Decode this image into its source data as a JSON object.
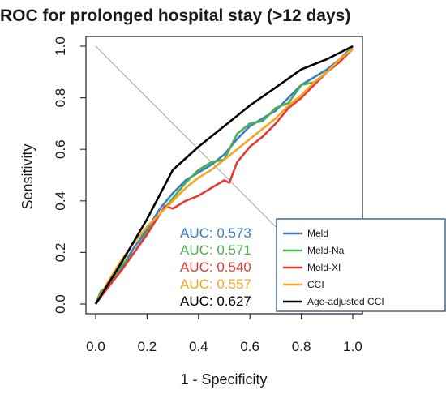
{
  "chart_data": {
    "type": "line",
    "title": "ROC for prolonged hospital stay (>12 days)",
    "xlabel": "1 - Specificity",
    "ylabel": "Sensitivity",
    "xlim": [
      0,
      1
    ],
    "ylim": [
      0,
      1
    ],
    "x_ticks": [
      "0.0",
      "0.2",
      "0.4",
      "0.6",
      "0.8",
      "1.0"
    ],
    "y_ticks": [
      "0.0",
      "0.2",
      "0.4",
      "0.6",
      "0.8",
      "1.0"
    ],
    "grid": false,
    "reference_line": true,
    "legend_position": "bottom-right",
    "series": [
      {
        "name": "Meld",
        "color": "#3b7ec4",
        "auc_label": "AUC: 0.573",
        "points": [
          [
            0,
            0
          ],
          [
            0.02,
            0.03
          ],
          [
            0.06,
            0.08
          ],
          [
            0.1,
            0.14
          ],
          [
            0.15,
            0.22
          ],
          [
            0.2,
            0.29
          ],
          [
            0.25,
            0.37
          ],
          [
            0.3,
            0.43
          ],
          [
            0.35,
            0.48
          ],
          [
            0.4,
            0.51
          ],
          [
            0.45,
            0.54
          ],
          [
            0.5,
            0.58
          ],
          [
            0.55,
            0.64
          ],
          [
            0.6,
            0.69
          ],
          [
            0.65,
            0.72
          ],
          [
            0.7,
            0.75
          ],
          [
            0.75,
            0.8
          ],
          [
            0.8,
            0.85
          ],
          [
            0.85,
            0.88
          ],
          [
            0.9,
            0.91
          ],
          [
            0.95,
            0.95
          ],
          [
            1,
            1
          ]
        ]
      },
      {
        "name": "Meld-Na",
        "color": "#4caf50",
        "auc_label": "AUC: 0.571",
        "points": [
          [
            0,
            0
          ],
          [
            0.02,
            0.05
          ],
          [
            0.05,
            0.07
          ],
          [
            0.1,
            0.15
          ],
          [
            0.15,
            0.2
          ],
          [
            0.2,
            0.28
          ],
          [
            0.25,
            0.35
          ],
          [
            0.3,
            0.41
          ],
          [
            0.35,
            0.47
          ],
          [
            0.4,
            0.52
          ],
          [
            0.45,
            0.55
          ],
          [
            0.5,
            0.56
          ],
          [
            0.55,
            0.66
          ],
          [
            0.6,
            0.7
          ],
          [
            0.65,
            0.71
          ],
          [
            0.7,
            0.76
          ],
          [
            0.75,
            0.78
          ],
          [
            0.8,
            0.85
          ],
          [
            0.85,
            0.86
          ],
          [
            0.9,
            0.9
          ],
          [
            0.95,
            0.94
          ],
          [
            1,
            1
          ]
        ]
      },
      {
        "name": "Meld-XI",
        "color": "#e53935",
        "auc_label": "AUC: 0.540",
        "points": [
          [
            0,
            0
          ],
          [
            0.03,
            0.04
          ],
          [
            0.06,
            0.08
          ],
          [
            0.1,
            0.13
          ],
          [
            0.15,
            0.2
          ],
          [
            0.2,
            0.27
          ],
          [
            0.25,
            0.35
          ],
          [
            0.27,
            0.38
          ],
          [
            0.3,
            0.37
          ],
          [
            0.35,
            0.4
          ],
          [
            0.4,
            0.42
          ],
          [
            0.45,
            0.45
          ],
          [
            0.5,
            0.48
          ],
          [
            0.52,
            0.47
          ],
          [
            0.55,
            0.55
          ],
          [
            0.6,
            0.61
          ],
          [
            0.65,
            0.65
          ],
          [
            0.7,
            0.7
          ],
          [
            0.75,
            0.76
          ],
          [
            0.8,
            0.8
          ],
          [
            0.85,
            0.85
          ],
          [
            0.9,
            0.9
          ],
          [
            0.95,
            0.94
          ],
          [
            1,
            0.99
          ]
        ]
      },
      {
        "name": "CCI",
        "color": "#f5a623",
        "auc_label": "AUC: 0.557",
        "points": [
          [
            0,
            0
          ],
          [
            0.05,
            0.09
          ],
          [
            0.1,
            0.17
          ],
          [
            0.15,
            0.24
          ],
          [
            0.2,
            0.3
          ],
          [
            0.25,
            0.35
          ],
          [
            0.3,
            0.4
          ],
          [
            0.35,
            0.45
          ],
          [
            0.4,
            0.49
          ],
          [
            0.45,
            0.52
          ],
          [
            0.5,
            0.56
          ],
          [
            0.55,
            0.6
          ],
          [
            0.6,
            0.64
          ],
          [
            0.65,
            0.68
          ],
          [
            0.7,
            0.72
          ],
          [
            0.75,
            0.77
          ],
          [
            0.8,
            0.81
          ],
          [
            0.85,
            0.86
          ],
          [
            0.9,
            0.9
          ],
          [
            0.95,
            0.95
          ],
          [
            1,
            0.99
          ]
        ]
      },
      {
        "name": "Age-adjusted CCI",
        "color": "#000000",
        "auc_label": "AUC: 0.627",
        "points": [
          [
            0,
            0
          ],
          [
            0.1,
            0.16
          ],
          [
            0.2,
            0.33
          ],
          [
            0.3,
            0.52
          ],
          [
            0.4,
            0.61
          ],
          [
            0.5,
            0.69
          ],
          [
            0.6,
            0.77
          ],
          [
            0.7,
            0.84
          ],
          [
            0.8,
            0.91
          ],
          [
            0.9,
            0.95
          ],
          [
            1,
            1
          ]
        ]
      }
    ]
  }
}
